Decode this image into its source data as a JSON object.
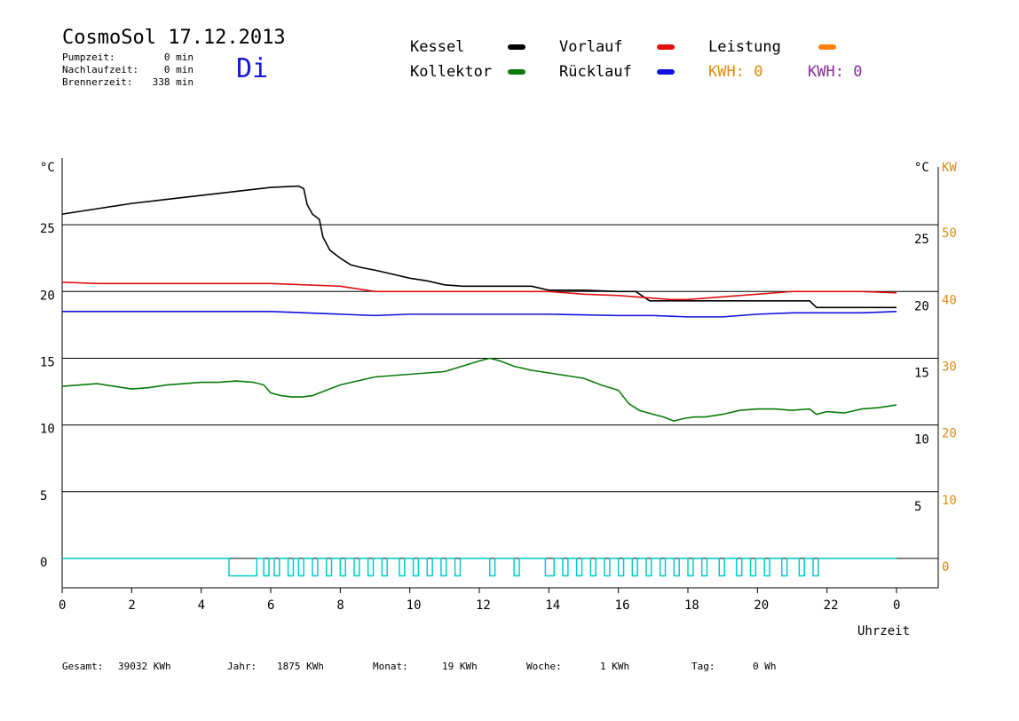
{
  "header": {
    "title": "CosmoSol 17.12.2013",
    "day": "Di",
    "info": [
      {
        "label": "Pumpzeit:",
        "value": "0 min"
      },
      {
        "label": "Nachlaufzeit:",
        "value": "0 min"
      },
      {
        "label": "Brennerzeit:",
        "value": "338 min"
      }
    ]
  },
  "legend": {
    "kessel": {
      "label": "Kessel",
      "color": "#000000"
    },
    "vorlauf": {
      "label": "Vorlauf",
      "color": "#e01010"
    },
    "leistung": {
      "label": "Leistung",
      "color": "#ff8010"
    },
    "kollektor": {
      "label": "Kollektor",
      "color": "#0a7a0a"
    },
    "ruecklauf": {
      "label": "Rücklauf",
      "color": "#1010e0"
    },
    "kwh1": {
      "label": "KWH:",
      "value": "0",
      "color": "#e08a10"
    },
    "kwh2": {
      "label": "KWH:",
      "value": "0",
      "color": "#8a2a9a"
    }
  },
  "footer": [
    {
      "label": "Gesamt:",
      "value": "39032 KWh"
    },
    {
      "label": "Jahr:",
      "value": "1875 KWh"
    },
    {
      "label": "Monat:",
      "value": "19 KWh"
    },
    {
      "label": "Woche:",
      "value": "1 KWh"
    },
    {
      "label": "Tag:",
      "value": "0 Wh"
    }
  ],
  "chart_data": {
    "type": "line",
    "xlabel": "Uhrzeit",
    "xlim": [
      0,
      24
    ],
    "x_ticks": [
      "0",
      "2",
      "4",
      "6",
      "8",
      "10",
      "12",
      "14",
      "16",
      "18",
      "20",
      "22",
      "0"
    ],
    "ylim": [
      -2.2,
      30
    ],
    "left_axis": {
      "unit": "°C",
      "ticks": [
        0,
        5,
        10,
        15,
        20,
        25
      ],
      "tick_labels": [
        "0",
        "5",
        "10",
        "15",
        "20",
        "25"
      ]
    },
    "right_axis": {
      "unit": "°C",
      "ticks": [
        5,
        10,
        15,
        20,
        25
      ],
      "tick_labels": [
        "5",
        "10",
        "15",
        "20",
        "25"
      ]
    },
    "right_axis_kw": {
      "unit": "KW",
      "ticks": [
        0,
        5,
        10,
        15,
        20,
        25
      ],
      "tick_labels": [
        "0",
        "10",
        "20",
        "30",
        "40",
        "50"
      ],
      "color": "#e08a10"
    },
    "grid": "horizontal",
    "series": [
      {
        "name": "Kessel",
        "color": "#000000",
        "x": [
          0,
          0.5,
          1,
          2,
          3,
          4,
          5,
          6,
          6.8,
          6.95,
          7.05,
          7.2,
          7.4,
          7.5,
          7.7,
          8,
          8.3,
          8.6,
          9,
          9.5,
          10,
          10.5,
          11,
          11.5,
          12,
          13,
          13.5,
          14,
          14.5,
          15,
          16,
          16.5,
          16.9,
          17.5,
          18,
          19,
          20,
          21,
          21.5,
          21.7,
          22,
          23,
          24
        ],
        "y": [
          25.8,
          26.0,
          26.2,
          26.6,
          26.9,
          27.2,
          27.5,
          27.8,
          27.9,
          27.7,
          26.5,
          25.8,
          25.4,
          24.1,
          23.1,
          22.5,
          22.0,
          21.8,
          21.6,
          21.3,
          21.0,
          20.8,
          20.5,
          20.4,
          20.4,
          20.4,
          20.4,
          20.1,
          20.1,
          20.1,
          20.0,
          20.0,
          19.3,
          19.3,
          19.3,
          19.3,
          19.3,
          19.3,
          19.3,
          18.8,
          18.8,
          18.8,
          18.8
        ]
      },
      {
        "name": "Vorlauf",
        "color": "#e01010",
        "x": [
          0,
          1,
          3,
          5,
          6,
          7,
          8,
          8.5,
          9,
          12,
          14,
          15,
          16,
          17,
          17.5,
          18,
          19,
          20,
          21,
          22,
          23,
          24
        ],
        "y": [
          20.7,
          20.6,
          20.6,
          20.6,
          20.6,
          20.5,
          20.4,
          20.2,
          20.0,
          20.0,
          20.0,
          19.8,
          19.7,
          19.5,
          19.4,
          19.4,
          19.6,
          19.8,
          20.0,
          20.0,
          20.0,
          19.9
        ]
      },
      {
        "name": "Rücklauf",
        "color": "#1010e0",
        "x": [
          0,
          2,
          4,
          6,
          7,
          8,
          9,
          10,
          12,
          14,
          16,
          17,
          18,
          19,
          20,
          21,
          22,
          23,
          24
        ],
        "y": [
          18.5,
          18.5,
          18.5,
          18.5,
          18.4,
          18.3,
          18.2,
          18.3,
          18.3,
          18.3,
          18.2,
          18.2,
          18.1,
          18.1,
          18.3,
          18.4,
          18.4,
          18.4,
          18.5
        ]
      },
      {
        "name": "Kollektor",
        "color": "#0a7a0a",
        "x": [
          0,
          0.5,
          1,
          1.5,
          2,
          2.5,
          3,
          3.5,
          4,
          4.5,
          5,
          5.5,
          5.8,
          6,
          6.3,
          6.6,
          6.9,
          7.2,
          7.5,
          7.8,
          8,
          8.5,
          9,
          9.5,
          10,
          10.5,
          11,
          11.5,
          12,
          12.3,
          12.6,
          13,
          13.5,
          14,
          14.5,
          15,
          15.5,
          16,
          16.3,
          16.6,
          17,
          17.3,
          17.6,
          17.9,
          18.2,
          18.5,
          19,
          19.5,
          20,
          20.5,
          21,
          21.5,
          21.7,
          22,
          22.5,
          23,
          23.5,
          24
        ],
        "y": [
          12.9,
          13.0,
          13.1,
          12.9,
          12.7,
          12.8,
          13.0,
          13.1,
          13.2,
          13.2,
          13.3,
          13.2,
          13.0,
          12.4,
          12.2,
          12.1,
          12.1,
          12.2,
          12.5,
          12.8,
          13.0,
          13.3,
          13.6,
          13.7,
          13.8,
          13.9,
          14.0,
          14.4,
          14.8,
          15.0,
          14.8,
          14.4,
          14.1,
          13.9,
          13.7,
          13.5,
          13.0,
          12.6,
          11.6,
          11.1,
          10.8,
          10.6,
          10.3,
          10.5,
          10.6,
          10.6,
          10.8,
          11.1,
          11.2,
          11.2,
          11.1,
          11.2,
          10.8,
          11.0,
          10.9,
          11.2,
          11.3,
          11.5
        ]
      },
      {
        "name": "Leistung",
        "color": "#00cccc",
        "pulses": [
          [
            4.8,
            5.6
          ],
          [
            5.8,
            5.95
          ],
          [
            6.1,
            6.25
          ],
          [
            6.5,
            6.65
          ],
          [
            6.8,
            6.95
          ],
          [
            7.2,
            7.35
          ],
          [
            7.6,
            7.75
          ],
          [
            8.0,
            8.15
          ],
          [
            8.4,
            8.55
          ],
          [
            8.8,
            8.95
          ],
          [
            9.2,
            9.35
          ],
          [
            9.7,
            9.85
          ],
          [
            10.1,
            10.25
          ],
          [
            10.5,
            10.65
          ],
          [
            10.9,
            11.05
          ],
          [
            11.3,
            11.45
          ],
          [
            12.3,
            12.45
          ],
          [
            13.0,
            13.15
          ],
          [
            13.9,
            14.15
          ],
          [
            14.4,
            14.55
          ],
          [
            14.8,
            14.95
          ],
          [
            15.2,
            15.35
          ],
          [
            15.6,
            15.75
          ],
          [
            16.0,
            16.15
          ],
          [
            16.4,
            16.55
          ],
          [
            16.8,
            16.95
          ],
          [
            17.2,
            17.35
          ],
          [
            17.6,
            17.75
          ],
          [
            18.0,
            18.15
          ],
          [
            18.4,
            18.55
          ],
          [
            18.9,
            19.05
          ],
          [
            19.4,
            19.55
          ],
          [
            19.8,
            19.95
          ],
          [
            20.2,
            20.35
          ],
          [
            20.7,
            20.85
          ],
          [
            21.2,
            21.35
          ],
          [
            21.6,
            21.75
          ]
        ],
        "pulse_height": -1.3
      }
    ]
  }
}
